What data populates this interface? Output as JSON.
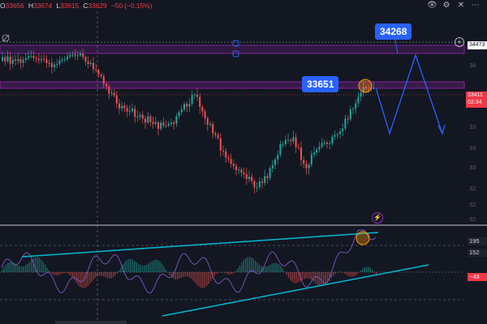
{
  "header": {
    "open_label": "O",
    "open": "33656",
    "high_label": "H",
    "high": "33674",
    "low_label": "L",
    "low": "33615",
    "close_label": "C",
    "close": "33629",
    "change": "−50 (−0.15%)"
  },
  "toolbar_icons": [
    "eye-icon",
    "settings-icon",
    "close-icon",
    "more-icon"
  ],
  "callouts": {
    "target": "34268",
    "current": "33651"
  },
  "price_axis": {
    "zone_top": "34473",
    "price_main": "33411",
    "countdown": "02:34",
    "faded": [
      "34",
      "33",
      "33",
      "33",
      "32",
      "32",
      "32"
    ]
  },
  "osc_axis": {
    "upper": "195",
    "mid": "152",
    "value": "−43"
  },
  "colors": {
    "background": "#131722",
    "up": "#26a69a",
    "down": "#ef5350",
    "zone": "#9c27b0",
    "projection": "#2962ff",
    "trendline": "#00bcd4",
    "highlight": "#ff9800",
    "oscillator": "#7e57c2"
  }
}
